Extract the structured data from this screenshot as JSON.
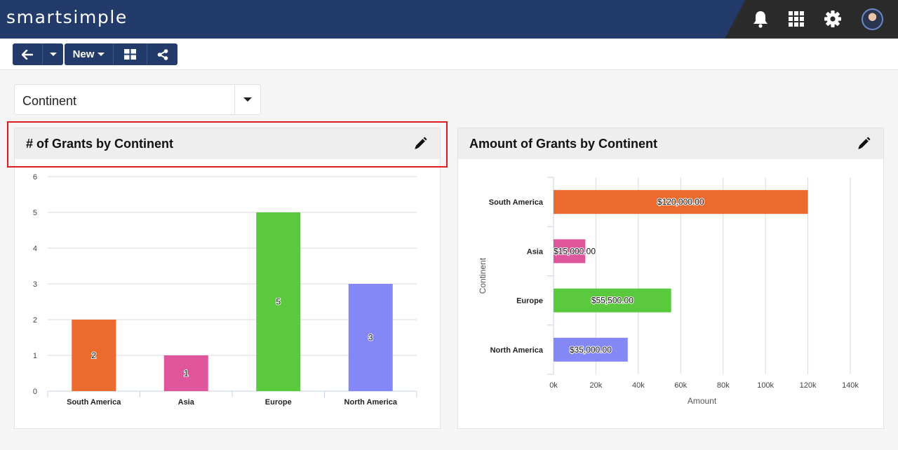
{
  "header": {
    "logo_text": "smartsimple",
    "icons": [
      "bell-icon",
      "apps-grid-icon",
      "gear-icon",
      "user-avatar"
    ]
  },
  "toolbar": {
    "new_label": "New"
  },
  "filter": {
    "selected": "Continent"
  },
  "colors": {
    "brand_blue": "#223b6b",
    "highlight_red": "#e01b1b",
    "south_america": "#eb6b2f",
    "asia": "#e0569d",
    "europe": "#5bc93e",
    "north_america": "#8488f7"
  },
  "panels": {
    "count": {
      "title": "# of Grants by Continent"
    },
    "amount": {
      "title": "Amount of Grants by Continent"
    }
  },
  "chart_data": [
    {
      "type": "bar",
      "title": "# of Grants by Continent",
      "categories": [
        "South America",
        "Asia",
        "Europe",
        "North America"
      ],
      "values": [
        2,
        1,
        5,
        3
      ],
      "value_labels": [
        "2",
        "1",
        "5",
        "3"
      ],
      "colors": [
        "#eb6b2f",
        "#e0569d",
        "#5bc93e",
        "#8488f7"
      ],
      "xlabel": "",
      "ylabel": "",
      "ylim": [
        0,
        6
      ],
      "yticks": [
        "0",
        "1",
        "2",
        "3",
        "4",
        "5",
        "6"
      ],
      "grid": true
    },
    {
      "type": "bar",
      "orientation": "horizontal",
      "title": "Amount of Grants by Continent",
      "categories": [
        "South America",
        "Asia",
        "Europe",
        "North America"
      ],
      "values": [
        120000,
        15000,
        55500,
        35000
      ],
      "value_labels": [
        "$120,000.00",
        "$15,000.00",
        "$55,500.00",
        "$35,000.00"
      ],
      "colors": [
        "#eb6b2f",
        "#e0569d",
        "#5bc93e",
        "#8488f7"
      ],
      "xlabel": "Amount",
      "ylabel": "Continent",
      "xlim": [
        0,
        140000
      ],
      "xticks": [
        "0k",
        "20k",
        "40k",
        "60k",
        "80k",
        "100k",
        "120k",
        "140k"
      ],
      "grid": true
    }
  ]
}
